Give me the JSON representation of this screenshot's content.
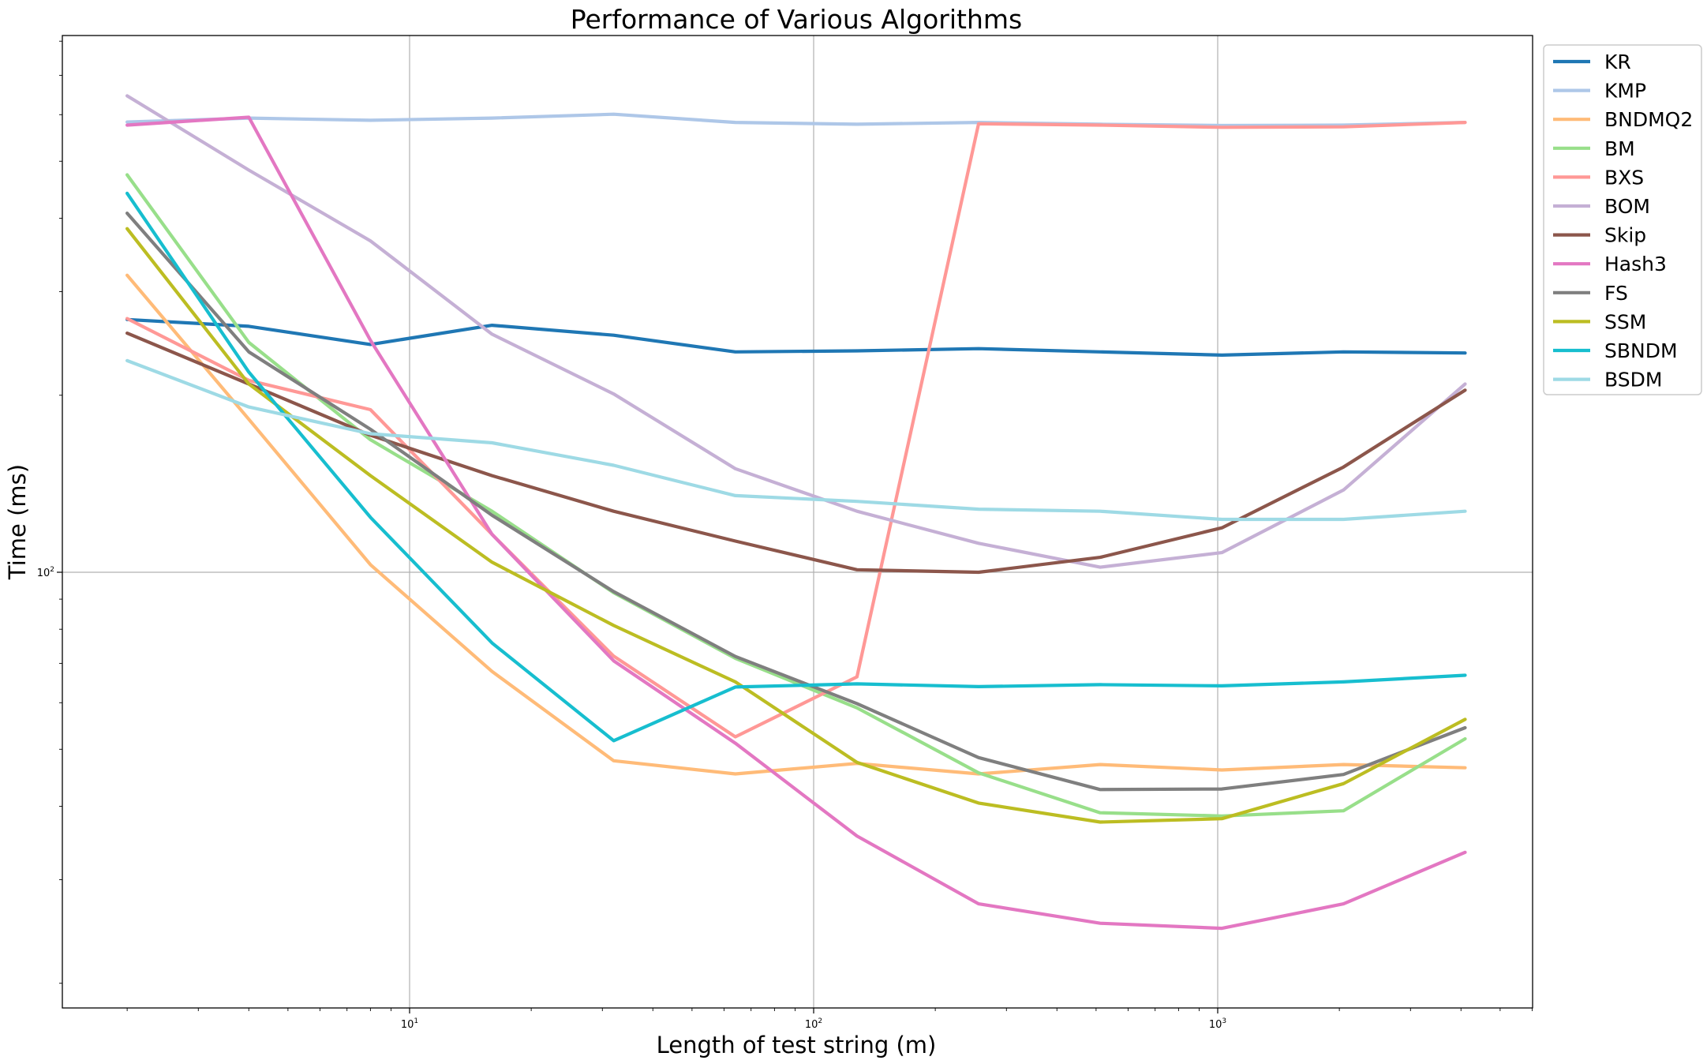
{
  "chart_data": {
    "type": "line",
    "title": "Performance of Various Algorithms",
    "xlabel": "Length of test string (m)",
    "ylabel": "Time (ms)",
    "xscale": "log",
    "yscale": "log",
    "grid": true,
    "legend_position": "outside-top-right",
    "x_ticks": [
      {
        "base": "10",
        "exp": "1"
      },
      {
        "base": "10",
        "exp": "2"
      },
      {
        "base": "10",
        "exp": "3"
      }
    ],
    "y_ticks": [
      {
        "base": "10",
        "exp": "2"
      }
    ],
    "x": [
      2,
      4,
      8,
      16,
      32,
      64,
      128,
      256,
      512,
      1024,
      2048,
      4096
    ],
    "series": [
      {
        "name": "KR",
        "color": "#1f77b4",
        "values": [
          269,
          262,
          244,
          263,
          253,
          237,
          238,
          240,
          237,
          234,
          237,
          236
        ]
      },
      {
        "name": "KMP",
        "color": "#aec7e8",
        "values": [
          583,
          592,
          587,
          592,
          601,
          582,
          578,
          582,
          578,
          575,
          576,
          582
        ]
      },
      {
        "name": "BNDMQ2",
        "color": "#ffbb78",
        "values": [
          320,
          182,
          103,
          67.8,
          47.8,
          45.4,
          47.3,
          45.4,
          47.1,
          46.1,
          47.1,
          46.5
        ]
      },
      {
        "name": "BM",
        "color": "#98df8a",
        "values": [
          474,
          246,
          168,
          127,
          92.3,
          71.4,
          58.8,
          45.6,
          39.0,
          38.5,
          39.3,
          52.1
        ]
      },
      {
        "name": "BXS",
        "color": "#ff9896",
        "values": [
          270,
          212,
          189,
          116,
          72.0,
          52.5,
          66.4,
          579,
          576,
          571,
          572,
          582
        ]
      },
      {
        "name": "BOM",
        "color": "#c5b0d5",
        "values": [
          646,
          483,
          366,
          254,
          201,
          150,
          127,
          112,
          102,
          108,
          138,
          209
        ]
      },
      {
        "name": "Skip",
        "color": "#8c564b",
        "values": [
          255,
          209,
          171,
          146,
          127,
          113,
          101,
          100,
          106,
          119,
          151,
          204
        ]
      },
      {
        "name": "Hash3",
        "color": "#e377c2",
        "values": [
          576,
          594,
          248,
          116,
          70.7,
          51.2,
          35.6,
          27.3,
          25.3,
          24.8,
          27.3,
          33.4
        ]
      },
      {
        "name": "FS",
        "color": "#7f7f7f",
        "values": [
          408,
          237,
          175,
          125,
          92.7,
          71.9,
          59.8,
          48.4,
          42.7,
          42.8,
          45.3,
          54.4
        ]
      },
      {
        "name": "SSM",
        "color": "#bcbd22",
        "values": [
          384,
          209,
          146,
          104,
          81.2,
          65.1,
          47.5,
          40.5,
          37.6,
          38.1,
          43.7,
          56.2
        ]
      },
      {
        "name": "SBNDM",
        "color": "#17becf",
        "values": [
          441,
          219,
          124,
          75.8,
          51.7,
          63.8,
          64.6,
          63.9,
          64.4,
          64.1,
          65.1,
          66.8
        ]
      },
      {
        "name": "BSDM",
        "color": "#9edae5",
        "values": [
          229,
          191,
          172,
          166,
          152,
          135,
          132,
          128,
          127,
          123,
          123,
          127
        ]
      }
    ]
  }
}
